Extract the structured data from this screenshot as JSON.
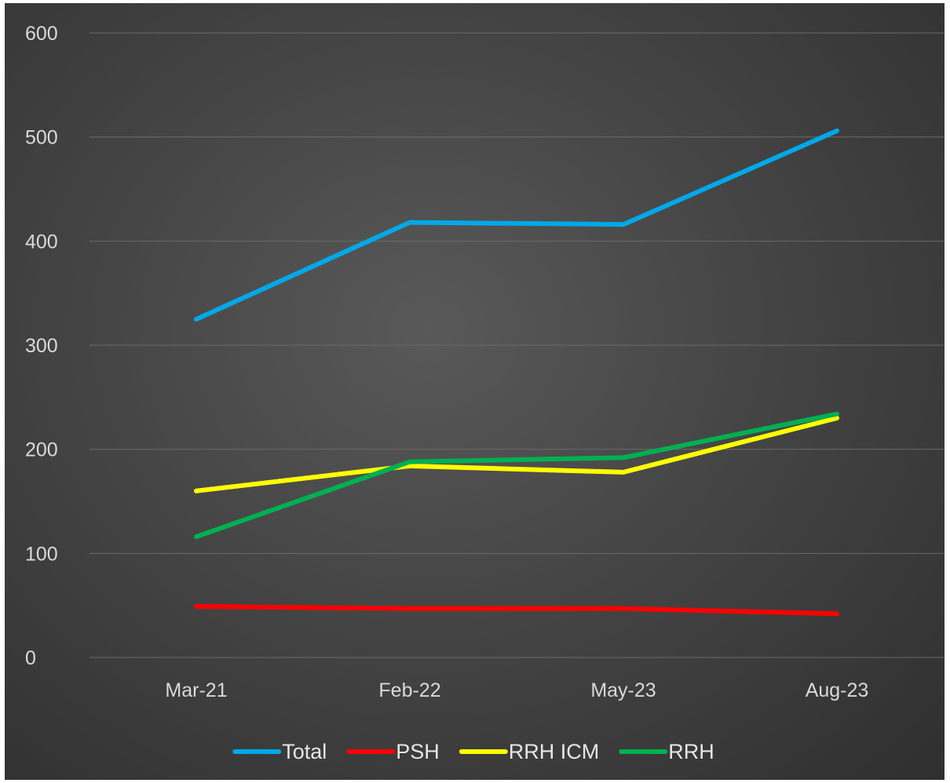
{
  "chart_data": {
    "type": "line",
    "title": "",
    "xlabel": "",
    "ylabel": "",
    "categories": [
      "Mar-21",
      "Feb-22",
      "May-23",
      "Aug-23"
    ],
    "ylim": [
      0,
      600
    ],
    "yticks": [
      0,
      100,
      200,
      300,
      400,
      500,
      600
    ],
    "grid": true,
    "legend_position": "bottom",
    "series": [
      {
        "name": "Total",
        "color": "#00a8e8",
        "values": [
          325,
          418,
          416,
          506
        ]
      },
      {
        "name": "PSH",
        "color": "#ff0000",
        "values": [
          49,
          47,
          47,
          42
        ]
      },
      {
        "name": "RRH ICM",
        "color": "#ffff00",
        "values": [
          160,
          184,
          178,
          230
        ]
      },
      {
        "name": "RRH",
        "color": "#00b050",
        "values": [
          116,
          188,
          192,
          234
        ]
      }
    ]
  }
}
